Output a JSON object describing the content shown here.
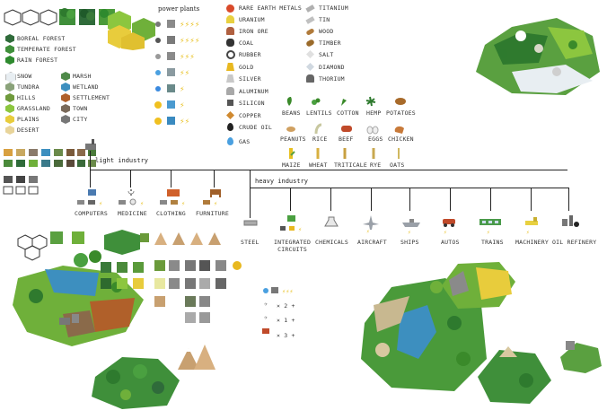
{
  "terrain_legend": {
    "forests": [
      {
        "label": "BOREAL FOREST",
        "color": "#2f6b3a"
      },
      {
        "label": "TEMPERATE FOREST",
        "color": "#3f8f3a"
      },
      {
        "label": "RAIN FOREST",
        "color": "#2e8a2e"
      }
    ],
    "left_col": [
      {
        "label": "SNOW",
        "color": "#e8eef2"
      },
      {
        "label": "TUNDRA",
        "color": "#8aa27a"
      },
      {
        "label": "HILLS",
        "color": "#6f9a3c"
      },
      {
        "label": "GRASSLAND",
        "color": "#8cc63f"
      },
      {
        "label": "PLAINS",
        "color": "#e8cc3c"
      },
      {
        "label": "DESERT",
        "color": "#e8d49a"
      }
    ],
    "right_col": [
      {
        "label": "MARSH",
        "color": "#4f8a4a"
      },
      {
        "label": "WETLAND",
        "color": "#3d8fbf"
      },
      {
        "label": "SETTLEMENT",
        "color": "#b0602a"
      },
      {
        "label": "TOWN",
        "color": "#7a6a5a"
      },
      {
        "label": "CITY",
        "color": "#777777"
      }
    ]
  },
  "power_plants": {
    "title": "power plants"
  },
  "resources_col1": [
    {
      "label": "RARE EARTH METALS",
      "icon": "rare-earth-icon",
      "color": "#d94a2a"
    },
    {
      "label": "URANIUM",
      "icon": "uranium-icon",
      "color": "#e8d040"
    },
    {
      "label": "IRON ORE",
      "icon": "iron-ore-icon",
      "color": "#b06040"
    },
    {
      "label": "COAL",
      "icon": "coal-icon",
      "color": "#333333"
    },
    {
      "label": "RUBBER",
      "icon": "rubber-icon",
      "color": "#444444"
    },
    {
      "label": "GOLD",
      "icon": "gold-icon",
      "color": "#e8b820"
    },
    {
      "label": "SILVER",
      "icon": "silver-icon",
      "color": "#c8c8c8"
    },
    {
      "label": "ALUMINUM",
      "icon": "aluminum-icon",
      "color": "#a8a8a8"
    },
    {
      "label": "SILICON",
      "icon": "silicon-icon",
      "color": "#555555"
    },
    {
      "label": "COPPER",
      "icon": "copper-icon",
      "color": "#d08a30"
    },
    {
      "label": "CRUDE OIL",
      "icon": "crude-oil-icon",
      "color": "#222222"
    },
    {
      "label": "GAS",
      "icon": "gas-icon",
      "color": "#4aa0e0"
    }
  ],
  "resources_col2": [
    {
      "label": "TITANIUM",
      "icon": "titanium-icon",
      "color": "#b0b0b0"
    },
    {
      "label": "TIN",
      "icon": "tin-icon",
      "color": "#c0c0c0"
    },
    {
      "label": "WOOD",
      "icon": "wood-icon",
      "color": "#b07a3a"
    },
    {
      "label": "TIMBER",
      "icon": "timber-icon",
      "color": "#9a6a2a"
    },
    {
      "label": "SALT",
      "icon": "salt-icon",
      "color": "#e0e0e0"
    },
    {
      "label": "DIAMOND",
      "icon": "diamond-icon",
      "color": "#d0d8e0"
    },
    {
      "label": "THORIUM",
      "icon": "thorium-icon",
      "color": "#666666"
    }
  ],
  "crops_row1": [
    "BEANS",
    "LENTILS",
    "COTTON",
    "HEMP",
    "POTATOES"
  ],
  "crops_row2": [
    "PEANUTS",
    "RICE",
    "BEEF",
    "EGGS",
    "CHICKEN"
  ],
  "crops_row3": [
    "MAIZE",
    "WHEAT",
    "TRITICALE",
    "RYE",
    "OATS"
  ],
  "light_industry": {
    "title": "light industry",
    "items": [
      "COMPUTERS",
      "MEDICINE",
      "CLOTHING",
      "FURNITURE"
    ]
  },
  "heavy_industry": {
    "title": "heavy industry",
    "items": [
      "STEEL",
      "INTEGRATED\nCIRCUITS",
      "CHEMICALS",
      "AIRCRAFT",
      "SHIPS",
      "AUTOS",
      "TRAINS",
      "MACHINERY",
      "OIL REFINERY"
    ]
  },
  "recipes": [
    "× 2 +",
    "× 1 +",
    "× 3 +"
  ]
}
